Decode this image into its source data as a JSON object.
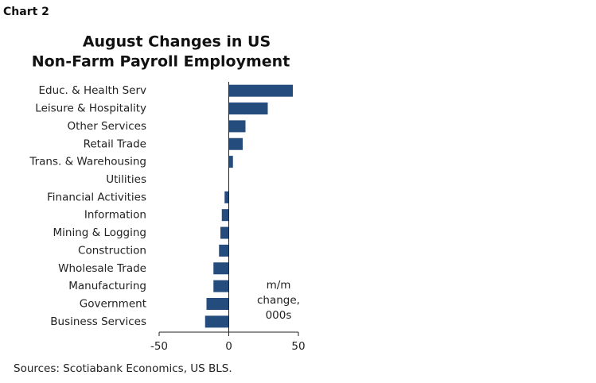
{
  "chart_data": {
    "type": "bar",
    "orientation": "horizontal",
    "chart_label": "Chart 2",
    "title": [
      "August Changes in US",
      "Non-Farm Payroll Employment"
    ],
    "categories": [
      "Educ. & Health Serv",
      "Leisure & Hospitality",
      "Other Services",
      "Retail Trade",
      "Trans. & Warehousing",
      "Utilities",
      "Financial Activities",
      "Information",
      "Mining & Logging",
      "Construction",
      "Wholesale Trade",
      "Manufacturing",
      "Government",
      "Business Services"
    ],
    "values": [
      46,
      28,
      12,
      10,
      3,
      0,
      -3,
      -5,
      -6,
      -7,
      -11,
      -11,
      -16,
      -17
    ],
    "color": "#244c7c",
    "xlim": [
      -50,
      50
    ],
    "xticks": [
      -50,
      0,
      50
    ],
    "annotation": [
      "m/m",
      "change,",
      "000s"
    ],
    "source": "Sources: Scotiabank Economics, US BLS."
  }
}
